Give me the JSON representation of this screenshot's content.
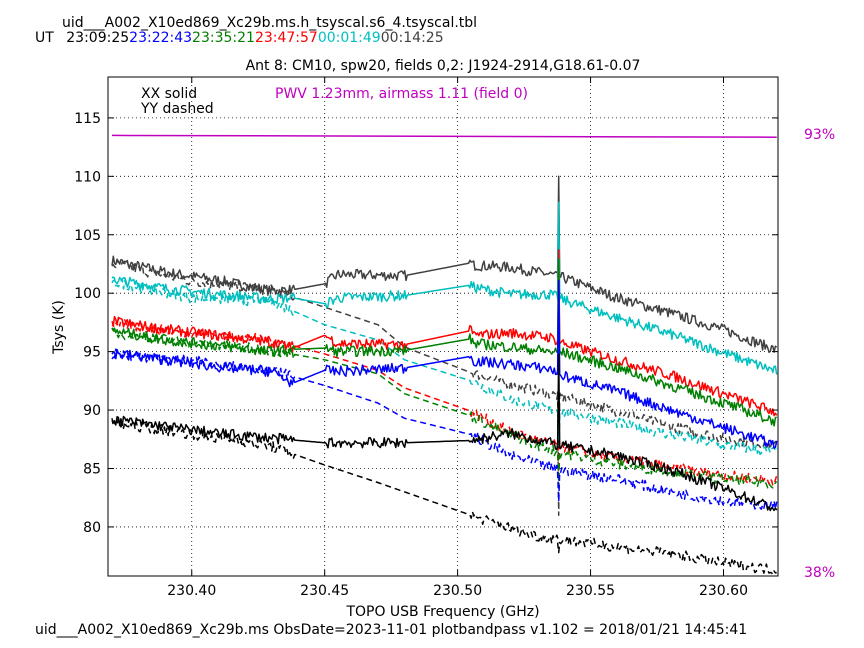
{
  "header": {
    "filename": "uid___A002_X10ed869_Xc29b.ms.h_tsyscal.s6_4.tsyscal.tbl",
    "ut_label": "UT",
    "times": [
      {
        "text": "23:09:25",
        "color": "#000000"
      },
      {
        "text": "23:22:43",
        "color": "#0000ff"
      },
      {
        "text": "23:35:21",
        "color": "#008000"
      },
      {
        "text": "23:47:57",
        "color": "#ff0000"
      },
      {
        "text": "00:01:49",
        "color": "#00bfbf"
      },
      {
        "text": "00:14:25",
        "color": "#404040"
      }
    ]
  },
  "footer": {
    "text": "uid___A002_X10ed869_Xc29b.ms  ObsDate=2023-11-01   plotbandpass v1.102 = 2018/01/21 14:45:41"
  },
  "chart_data": {
    "type": "line",
    "title": "Ant 8: CM10,  spw20,  fields 0,2: J1924-2914,G18.61-0.07",
    "xlabel": "TOPO USB Frequency (GHz)",
    "ylabel": "Tsys (K)",
    "xlim": [
      230.3685,
      230.6205
    ],
    "ylim": [
      75.8,
      118.5
    ],
    "xticks": [
      230.4,
      230.45,
      230.5,
      230.55,
      230.6
    ],
    "xtick_labels": [
      "230.40",
      "230.45",
      "230.50",
      "230.55",
      "230.60"
    ],
    "yticks": [
      80,
      85,
      90,
      95,
      100,
      105,
      110,
      115
    ],
    "grid": true,
    "legend_notes": [
      "XX solid",
      "YY dashed"
    ],
    "pwv_annotation": {
      "text": "PWV 1.23mm, airmass 1.11 (field 0)",
      "color": "#bf00bf"
    },
    "transmission": {
      "color": "#bf00bf",
      "top_label": "93%",
      "bottom_label": "38%",
      "x": [
        230.37,
        230.62
      ],
      "y": [
        113.5,
        113.35
      ]
    },
    "spike_x": 230.538,
    "series": [
      {
        "color": "#404040",
        "style": "solid",
        "x": [
          230.37,
          230.39,
          230.41,
          230.43,
          230.438,
          230.45,
          230.455,
          230.48,
          230.505,
          230.506,
          230.52,
          230.535,
          230.54,
          230.56,
          230.58,
          230.6,
          230.62
        ],
        "y": [
          102.8,
          101.8,
          101.1,
          100.2,
          100.3,
          100.8,
          101.6,
          101.5,
          102.6,
          102.4,
          102.2,
          101.6,
          101.3,
          99.6,
          98.3,
          96.9,
          95.1
        ]
      },
      {
        "color": "#404040",
        "style": "dashed",
        "x": [
          230.37,
          230.4,
          230.43,
          230.45,
          230.47,
          230.48,
          230.505,
          230.52,
          230.538,
          230.56,
          230.58,
          230.6,
          230.62
        ],
        "y": [
          102.5,
          101.0,
          100.3,
          98.8,
          97.3,
          95.4,
          93.2,
          92.2,
          91.2,
          89.9,
          88.6,
          87.6,
          86.9
        ]
      },
      {
        "color": "#00bfbf",
        "style": "solid",
        "x": [
          230.37,
          230.39,
          230.41,
          230.43,
          230.438,
          230.45,
          230.455,
          230.48,
          230.505,
          230.506,
          230.52,
          230.535,
          230.54,
          230.56,
          230.58,
          230.6,
          230.62
        ],
        "y": [
          101.2,
          100.4,
          99.9,
          99.5,
          99.6,
          99.1,
          99.6,
          99.8,
          100.7,
          100.5,
          99.9,
          99.9,
          99.4,
          97.9,
          96.5,
          94.9,
          93.3
        ]
      },
      {
        "color": "#00bfbf",
        "style": "dashed",
        "x": [
          230.37,
          230.4,
          230.43,
          230.45,
          230.47,
          230.48,
          230.505,
          230.52,
          230.538,
          230.56,
          230.58,
          230.6,
          230.62
        ],
        "y": [
          101.0,
          99.6,
          99.3,
          97.3,
          96.0,
          94.3,
          92.5,
          90.9,
          89.9,
          88.9,
          87.9,
          87.0,
          86.4
        ]
      },
      {
        "color": "#ff0000",
        "style": "solid",
        "x": [
          230.37,
          230.39,
          230.41,
          230.43,
          230.438,
          230.45,
          230.455,
          230.48,
          230.505,
          230.506,
          230.52,
          230.535,
          230.54,
          230.56,
          230.58,
          230.6,
          230.62
        ],
        "y": [
          97.6,
          96.9,
          96.4,
          95.8,
          95.3,
          96.4,
          95.7,
          95.6,
          96.8,
          96.4,
          96.6,
          96.2,
          95.7,
          94.3,
          93.0,
          91.4,
          89.8
        ]
      },
      {
        "color": "#ff0000",
        "style": "dashed",
        "x": [
          230.37,
          230.4,
          230.43,
          230.45,
          230.47,
          230.48,
          230.505,
          230.52,
          230.538,
          230.56,
          230.58,
          230.6,
          230.62
        ],
        "y": [
          97.4,
          96.6,
          96.0,
          94.8,
          93.4,
          91.9,
          89.9,
          88.1,
          86.9,
          85.9,
          85.1,
          84.4,
          84.0
        ]
      },
      {
        "color": "#008000",
        "style": "solid",
        "x": [
          230.37,
          230.39,
          230.41,
          230.43,
          230.438,
          230.45,
          230.455,
          230.48,
          230.505,
          230.506,
          230.52,
          230.535,
          230.54,
          230.56,
          230.58,
          230.6,
          230.62
        ],
        "y": [
          96.8,
          96.0,
          95.5,
          95.0,
          95.2,
          95.3,
          95.0,
          95.1,
          96.1,
          95.7,
          95.4,
          95.0,
          94.9,
          93.6,
          92.1,
          90.6,
          89.0
        ]
      },
      {
        "color": "#008000",
        "style": "dashed",
        "x": [
          230.37,
          230.4,
          230.43,
          230.45,
          230.47,
          230.48,
          230.505,
          230.52,
          230.538,
          230.56,
          230.58,
          230.6,
          230.62
        ],
        "y": [
          96.6,
          95.8,
          95.1,
          94.3,
          93.1,
          91.4,
          89.5,
          87.8,
          86.4,
          85.4,
          84.7,
          84.1,
          83.7
        ]
      },
      {
        "color": "#0000ff",
        "style": "solid",
        "x": [
          230.37,
          230.39,
          230.41,
          230.43,
          230.438,
          230.45,
          230.455,
          230.48,
          230.505,
          230.506,
          230.52,
          230.535,
          230.54,
          230.56,
          230.58,
          230.6,
          230.62
        ],
        "y": [
          94.9,
          94.3,
          93.7,
          93.3,
          92.3,
          93.4,
          93.3,
          93.6,
          94.6,
          94.2,
          93.9,
          93.5,
          92.9,
          91.6,
          90.0,
          88.5,
          87.0
        ]
      },
      {
        "color": "#0000ff",
        "style": "dashed",
        "x": [
          230.37,
          230.4,
          230.43,
          230.45,
          230.47,
          230.48,
          230.505,
          230.52,
          230.538,
          230.56,
          230.58,
          230.6,
          230.62
        ],
        "y": [
          94.8,
          94.2,
          93.4,
          92.1,
          90.6,
          89.3,
          87.9,
          86.1,
          84.9,
          84.1,
          83.0,
          82.2,
          81.8
        ]
      },
      {
        "color": "#000000",
        "style": "solid",
        "x": [
          230.37,
          230.39,
          230.41,
          230.43,
          230.45,
          230.48,
          230.505,
          230.52,
          230.538,
          230.56,
          230.58,
          230.6,
          230.62
        ],
        "y": [
          89.2,
          88.6,
          88.0,
          87.6,
          87.2,
          87.2,
          87.4,
          88.0,
          87.0,
          86.1,
          84.9,
          83.3,
          81.5
        ]
      },
      {
        "color": "#000000",
        "style": "dashed",
        "x": [
          230.37,
          230.39,
          230.41,
          230.43,
          230.45,
          230.47,
          230.49,
          230.51,
          230.53,
          230.56,
          230.58,
          230.6,
          230.62
        ],
        "y": [
          88.9,
          88.3,
          87.6,
          86.9,
          85.3,
          83.8,
          82.2,
          80.6,
          79.2,
          78.3,
          77.7,
          76.9,
          76.3
        ]
      }
    ]
  }
}
